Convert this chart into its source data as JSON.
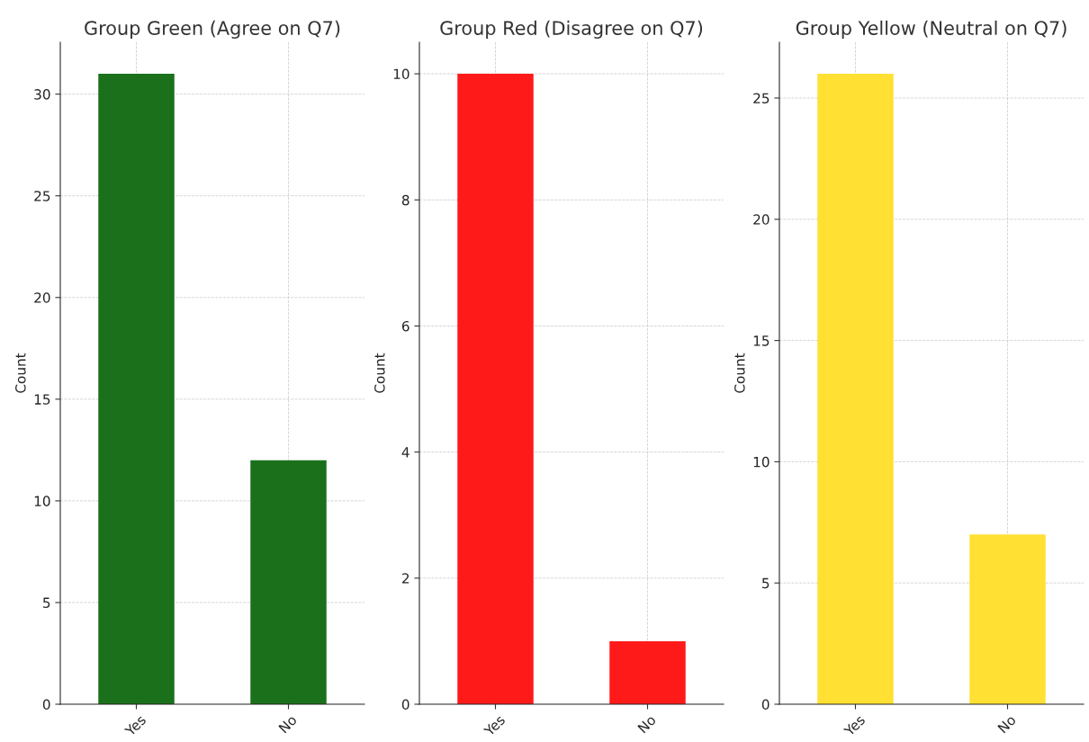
{
  "chart_data": [
    {
      "type": "bar",
      "title": "Group Green (Agree on Q7)",
      "ylabel": "Count",
      "categories": [
        "Yes",
        "No"
      ],
      "values": [
        31,
        12
      ],
      "color": "#1b711b",
      "ylim": [
        0,
        32.55
      ],
      "yticks": [
        0,
        5,
        10,
        15,
        20,
        25,
        30
      ],
      "grid": true
    },
    {
      "type": "bar",
      "title": "Group Red (Disagree on Q7)",
      "ylabel": "Count",
      "categories": [
        "Yes",
        "No"
      ],
      "values": [
        10,
        1
      ],
      "color": "#ff1a1a",
      "ylim": [
        0,
        10.5
      ],
      "yticks": [
        0,
        2,
        4,
        6,
        8,
        10
      ],
      "grid": true
    },
    {
      "type": "bar",
      "title": "Group Yellow (Neutral on Q7)",
      "ylabel": "Count",
      "categories": [
        "Yes",
        "No"
      ],
      "values": [
        26,
        7
      ],
      "color": "#ffe033",
      "ylim": [
        0,
        27.3
      ],
      "yticks": [
        0,
        5,
        10,
        15,
        20,
        25
      ],
      "grid": true
    }
  ]
}
